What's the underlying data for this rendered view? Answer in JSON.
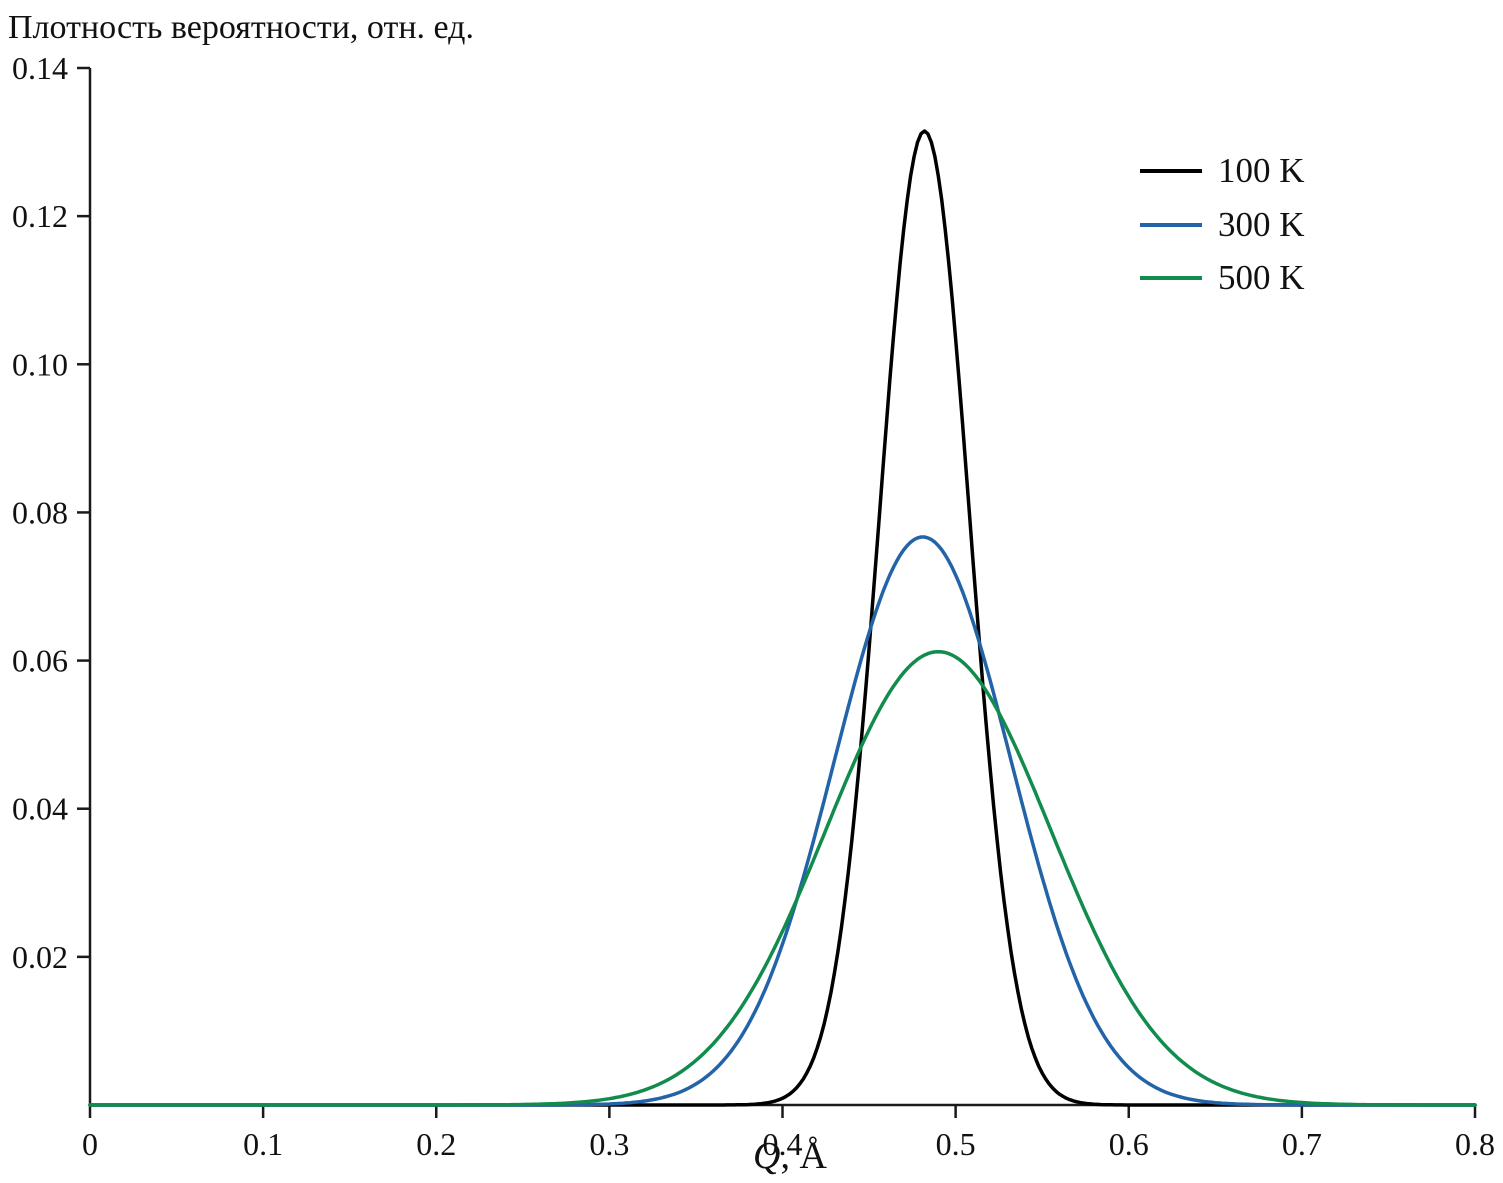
{
  "figure": {
    "background": "#ffffff",
    "axis_color": "#1a1a1a"
  },
  "chart_data": {
    "type": "line",
    "title": "Плотность вероятности, отн. ед.",
    "xlabel": "Q, Å",
    "xlabel_var": "Q",
    "xlabel_unit": ", Å",
    "xlim": [
      0,
      0.8
    ],
    "ylim": [
      0,
      0.14
    ],
    "grid": false,
    "legend_position": "upper-right",
    "x_ticks": [
      {
        "value": 0.0,
        "label": "0"
      },
      {
        "value": 0.1,
        "label": "0.1"
      },
      {
        "value": 0.2,
        "label": "0.2"
      },
      {
        "value": 0.3,
        "label": "0.3"
      },
      {
        "value": 0.4,
        "label": "0.4"
      },
      {
        "value": 0.5,
        "label": "0.5"
      },
      {
        "value": 0.6,
        "label": "0.6"
      },
      {
        "value": 0.7,
        "label": "0.7"
      },
      {
        "value": 0.8,
        "label": "0.8"
      }
    ],
    "y_ticks": [
      {
        "value": 0.02,
        "label": "0.02"
      },
      {
        "value": 0.04,
        "label": "0.04"
      },
      {
        "value": 0.06,
        "label": "0.06"
      },
      {
        "value": 0.08,
        "label": "0.08"
      },
      {
        "value": 0.1,
        "label": "0.10"
      },
      {
        "value": 0.12,
        "label": "0.12"
      },
      {
        "value": 0.14,
        "label": "0.14"
      }
    ],
    "series": [
      {
        "name": "100 K",
        "color": "#000000",
        "model": "gaussian",
        "peak": {
          "x": 0.482,
          "y": 0.1315
        },
        "sigma": 0.026,
        "sample_points": {
          "x": [
            0.35,
            0.4,
            0.45,
            0.48,
            0.5,
            0.55,
            0.6
          ],
          "y": [
            0.0,
            0.0009,
            0.0617,
            0.1314,
            0.1035,
            0.0043,
            0.0
          ]
        }
      },
      {
        "name": "300 K",
        "color": "#2363a8",
        "model": "gaussian",
        "peak": {
          "x": 0.481,
          "y": 0.0767
        },
        "sigma": 0.051,
        "sample_points": {
          "x": [
            0.3,
            0.35,
            0.4,
            0.45,
            0.48,
            0.5,
            0.55,
            0.6,
            0.65
          ],
          "y": [
            0.0001,
            0.0028,
            0.0217,
            0.0638,
            0.0767,
            0.0716,
            0.0307,
            0.005,
            0.0003
          ]
        }
      },
      {
        "name": "500 K",
        "color": "#118c4c",
        "model": "gaussian",
        "peak": {
          "x": 0.49,
          "y": 0.0612
        },
        "sigma": 0.065,
        "sample_points": {
          "x": [
            0.25,
            0.3,
            0.35,
            0.4,
            0.45,
            0.5,
            0.55,
            0.6,
            0.65,
            0.7
          ],
          "y": [
            0.0001,
            0.0009,
            0.006,
            0.0235,
            0.0506,
            0.0605,
            0.04,
            0.0146,
            0.003,
            0.0003
          ]
        }
      }
    ]
  }
}
